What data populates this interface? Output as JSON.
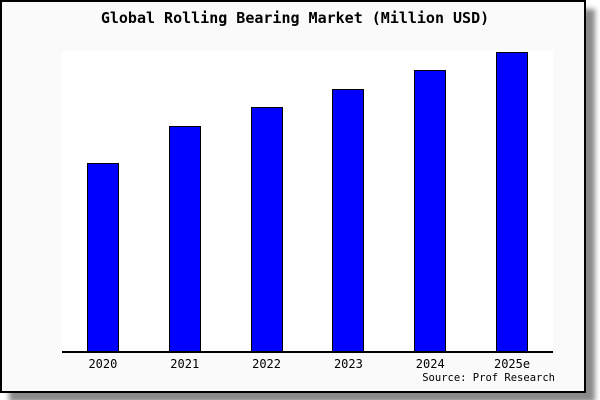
{
  "page": {
    "background": "#ffffff"
  },
  "card": {
    "background": "#fafafa",
    "border_color": "#000000",
    "shadow_color": "#8a8a8a"
  },
  "chart_data": {
    "type": "bar",
    "title": "Global Rolling Bearing Market (Million USD)",
    "categories": [
      "2020",
      "2021",
      "2022",
      "2023",
      "2024",
      "2025e"
    ],
    "values": [
      62.3,
      74.7,
      81.0,
      87.0,
      93.3,
      99.3
    ],
    "values_note": "relative bar heights in % of plot area height; chart shows no numeric y-axis labels",
    "xlabel": "",
    "ylabel": "",
    "ylim": [
      0,
      100
    ],
    "grid": "off",
    "legend": "none",
    "bar_color": "#0000ff",
    "bar_border_color": "#000000",
    "plot_background": "#ffffff",
    "axis_line_color": "#000000"
  },
  "footer": {
    "source_label": "Source: Prof Research"
  }
}
